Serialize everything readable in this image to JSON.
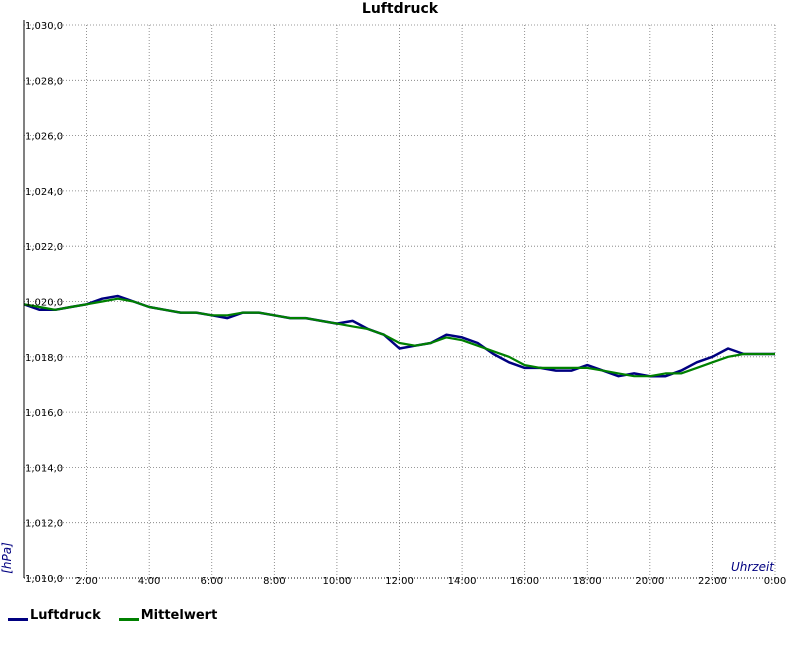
{
  "chart_data": {
    "type": "line",
    "title": "Luftdruck",
    "xlabel": "Uhrzeit",
    "ylabel": "[hPa]",
    "ylim": [
      1010.0,
      1030.0
    ],
    "xlim": [
      0,
      24
    ],
    "y_ticks": [
      "1,010,0",
      "1,012,0",
      "1,014,0",
      "1,016,0",
      "1,018,0",
      "1,020,0",
      "1,022,0",
      "1,024,0",
      "1,026,0",
      "1,028,0",
      "1,030,0"
    ],
    "x_ticks": [
      "2:00",
      "4:00",
      "6:00",
      "8:00",
      "10:00",
      "12:00",
      "14:00",
      "16:00",
      "18:00",
      "20:00",
      "22:00",
      "0:00"
    ],
    "grid": true,
    "legend_position": "bottom-left",
    "colors": {
      "Luftdruck": "#000080",
      "Mittelwert": "#008000"
    },
    "series": [
      {
        "name": "Luftdruck",
        "x": [
          0,
          0.5,
          1,
          1.5,
          2,
          2.5,
          3,
          3.5,
          4,
          4.5,
          5,
          5.5,
          6,
          6.5,
          7,
          7.5,
          8,
          8.5,
          9,
          9.5,
          10,
          10.5,
          11,
          11.5,
          12,
          12.5,
          13,
          13.5,
          14,
          14.5,
          15,
          15.5,
          16,
          16.5,
          17,
          17.5,
          18,
          18.5,
          19,
          19.5,
          20,
          20.5,
          21,
          21.5,
          22,
          22.5,
          23,
          23.5,
          24
        ],
        "y": [
          1019.9,
          1019.7,
          1019.7,
          1019.8,
          1019.9,
          1020.1,
          1020.2,
          1020.0,
          1019.8,
          1019.7,
          1019.6,
          1019.6,
          1019.5,
          1019.4,
          1019.6,
          1019.6,
          1019.5,
          1019.4,
          1019.4,
          1019.3,
          1019.2,
          1019.3,
          1019.0,
          1018.8,
          1018.3,
          1018.4,
          1018.5,
          1018.8,
          1018.7,
          1018.5,
          1018.1,
          1017.8,
          1017.6,
          1017.6,
          1017.5,
          1017.5,
          1017.7,
          1017.5,
          1017.3,
          1017.4,
          1017.3,
          1017.3,
          1017.5,
          1017.8,
          1018.0,
          1018.3,
          1018.1,
          1018.1,
          1018.1
        ]
      },
      {
        "name": "Mittelwert",
        "x": [
          0,
          0.5,
          1,
          1.5,
          2,
          2.5,
          3,
          3.5,
          4,
          4.5,
          5,
          5.5,
          6,
          6.5,
          7,
          7.5,
          8,
          8.5,
          9,
          9.5,
          10,
          10.5,
          11,
          11.5,
          12,
          12.5,
          13,
          13.5,
          14,
          14.5,
          15,
          15.5,
          16,
          16.5,
          17,
          17.5,
          18,
          18.5,
          19,
          19.5,
          20,
          20.5,
          21,
          21.5,
          22,
          22.5,
          23,
          23.5,
          24
        ],
        "y": [
          1019.9,
          1019.8,
          1019.7,
          1019.8,
          1019.9,
          1020.0,
          1020.1,
          1020.0,
          1019.8,
          1019.7,
          1019.6,
          1019.6,
          1019.5,
          1019.5,
          1019.6,
          1019.6,
          1019.5,
          1019.4,
          1019.4,
          1019.3,
          1019.2,
          1019.1,
          1019.0,
          1018.8,
          1018.5,
          1018.4,
          1018.5,
          1018.7,
          1018.6,
          1018.4,
          1018.2,
          1018.0,
          1017.7,
          1017.6,
          1017.6,
          1017.6,
          1017.6,
          1017.5,
          1017.4,
          1017.3,
          1017.3,
          1017.4,
          1017.4,
          1017.6,
          1017.8,
          1018.0,
          1018.1,
          1018.1,
          1018.1
        ]
      }
    ]
  }
}
